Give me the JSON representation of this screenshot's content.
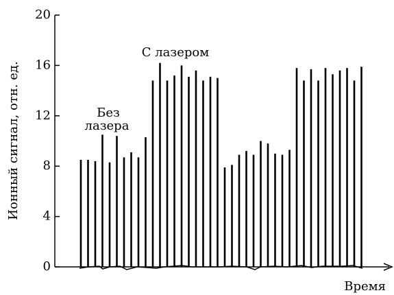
{
  "chart_data": {
    "type": "spike",
    "x_label": "Время",
    "y_label": "Ионный сигнал, отн. ед.",
    "annotations": [
      "Без",
      "лазера",
      "С лазером"
    ],
    "categories": [
      null,
      null,
      null,
      null,
      null,
      null,
      null,
      null,
      null,
      null,
      null,
      null,
      null,
      null,
      null,
      null,
      null,
      null,
      null,
      null,
      null,
      null,
      null,
      null,
      null,
      null,
      null,
      null,
      null,
      null,
      null,
      null,
      null,
      null,
      null,
      null,
      null,
      null,
      null,
      null
    ],
    "values": [
      8.5,
      8.5,
      8.4,
      10.5,
      8.3,
      10.4,
      8.7,
      9.1,
      8.7,
      10.3,
      14.8,
      16.2,
      14.8,
      15.2,
      16.0,
      15.1,
      15.6,
      14.8,
      15.1,
      15.0,
      7.9,
      8.1,
      8.9,
      9.2,
      8.9,
      10.0,
      9.8,
      9.0,
      8.9,
      9.3,
      15.8,
      14.8,
      15.7,
      14.8,
      15.8,
      15.3,
      15.6,
      15.8,
      14.8,
      15.9
    ],
    "color": "#000000",
    "ylim": [
      0,
      20
    ],
    "yticks": [
      0,
      4,
      8,
      12,
      16,
      20
    ]
  }
}
